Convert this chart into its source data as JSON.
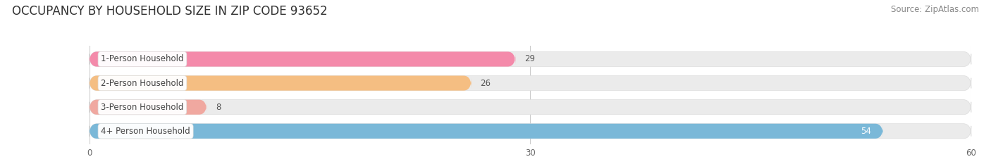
{
  "title": "OCCUPANCY BY HOUSEHOLD SIZE IN ZIP CODE 93652",
  "source": "Source: ZipAtlas.com",
  "categories": [
    "1-Person Household",
    "2-Person Household",
    "3-Person Household",
    "4+ Person Household"
  ],
  "values": [
    29,
    26,
    8,
    54
  ],
  "bar_colors": [
    "#f48aaa",
    "#f5be82",
    "#f0a8a0",
    "#7ab8d8"
  ],
  "label_colors": [
    "#555555",
    "#555555",
    "#555555",
    "#ffffff"
  ],
  "xlim": [
    0,
    60
  ],
  "xticks": [
    0,
    30,
    60
  ],
  "background_color": "#ffffff",
  "bar_bg_color": "#ebebeb",
  "title_fontsize": 12,
  "source_fontsize": 8.5,
  "label_fontsize": 8.5,
  "value_fontsize": 8.5,
  "bar_height": 0.62,
  "fig_width": 14.06,
  "fig_height": 2.33
}
